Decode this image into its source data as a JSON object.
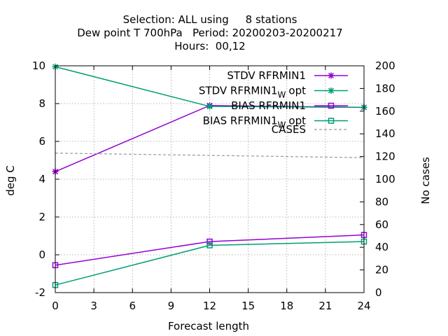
{
  "chart_data": {
    "type": "line",
    "title_lines": [
      "Selection: ALL using     8 stations",
      "Dew point T 700hPa   Period: 20200203-20200217",
      "Hours:  00,12"
    ],
    "xlabel": "Forecast length",
    "ylabel": "deg C",
    "y2label": "No cases",
    "x_ticks": [
      0,
      3,
      6,
      9,
      12,
      15,
      18,
      21,
      24
    ],
    "y_ticks": [
      -2,
      0,
      2,
      4,
      6,
      8,
      10
    ],
    "y2_ticks": [
      0,
      20,
      40,
      60,
      80,
      100,
      120,
      140,
      160,
      180,
      200
    ],
    "xlim": [
      0,
      24
    ],
    "ylim": [
      -2,
      10
    ],
    "y2lim": [
      0,
      200
    ],
    "grid": true,
    "legend_position": "top-right",
    "series": [
      {
        "name": "STDV RFRMIN1",
        "name_sub": "",
        "name_tail": "",
        "axis": "y",
        "color": "#9400d3",
        "marker": "star",
        "x": [
          0,
          12,
          24
        ],
        "y": [
          4.4,
          7.9,
          7.8
        ]
      },
      {
        "name": "STDV RFRMIN1",
        "name_sub": "W",
        "name_tail": "opt",
        "axis": "y",
        "color": "#009e73",
        "marker": "star",
        "x": [
          0,
          12,
          24
        ],
        "y": [
          9.95,
          7.85,
          7.8
        ]
      },
      {
        "name": "BIAS RFRMIN1",
        "name_sub": "",
        "name_tail": "",
        "axis": "y",
        "color": "#9400d3",
        "marker": "square",
        "x": [
          0,
          12,
          24
        ],
        "y": [
          -0.55,
          0.7,
          1.05
        ]
      },
      {
        "name": "BIAS RFRMIN1",
        "name_sub": "W",
        "name_tail": "opt",
        "axis": "y",
        "color": "#009e73",
        "marker": "square",
        "x": [
          0,
          12,
          24
        ],
        "y": [
          -1.6,
          0.5,
          0.7
        ]
      },
      {
        "name": "CASES",
        "name_sub": "",
        "name_tail": "",
        "axis": "y2",
        "color": "#999999",
        "marker": "none",
        "dashed": true,
        "x": [
          0,
          3,
          6,
          9,
          12,
          15,
          18,
          21,
          24
        ],
        "y": [
          123,
          122.5,
          122,
          121.5,
          121,
          120.5,
          120,
          119.5,
          119
        ]
      }
    ]
  }
}
